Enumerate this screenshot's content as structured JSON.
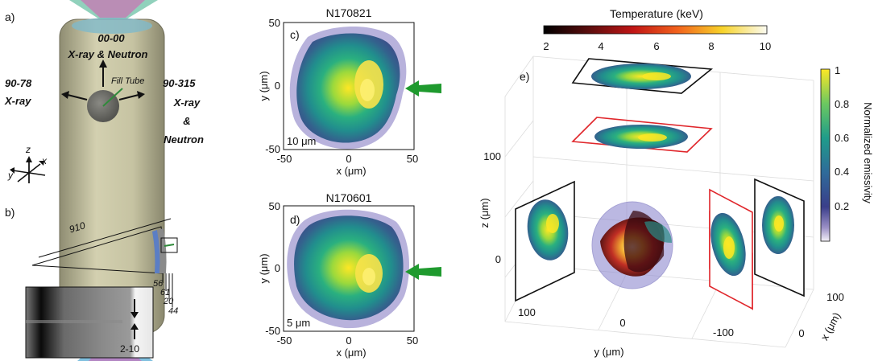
{
  "panel_labels": {
    "a": "a)",
    "b": "b)",
    "c": "c)",
    "d": "d)",
    "e": "e)"
  },
  "panel_a": {
    "views": {
      "top": {
        "id": "00-00",
        "kind": "X-ray & Neutron"
      },
      "left": {
        "id": "90-78",
        "kind": "X-ray"
      },
      "right": {
        "id": "90-315",
        "kind_lines": [
          "X-ray",
          "&",
          "Neutron"
        ]
      }
    },
    "fill_tube_label": "Fill Tube",
    "axes": {
      "z": "z",
      "y": "y",
      "x": "x"
    },
    "colors": {
      "hohlraum": "#c9c6a4",
      "capsule": "#6e6e66"
    }
  },
  "panel_b": {
    "radius_label": "910",
    "layer_labels": [
      "56",
      "61",
      "20",
      "44"
    ],
    "gap_label": "2-10",
    "colors": {
      "ablator": "#5b7ec4",
      "shell": "#8a8a8a"
    }
  },
  "panel_c": {
    "shot": "N170821",
    "scale_text": "10 μm",
    "xlabel": "x (μm)",
    "ylabel": "y (μm)",
    "xticks": [
      "-50",
      "0",
      "50"
    ],
    "yticks": [
      "50",
      "0",
      "-50"
    ],
    "arrow_color": "#1f9a2e"
  },
  "panel_d": {
    "shot": "N170601",
    "scale_text": "5 μm",
    "xlabel": "x (μm)",
    "ylabel": "y (μm)",
    "xticks": [
      "-50",
      "0",
      "50"
    ],
    "yticks": [
      "50",
      "0",
      "-50"
    ],
    "arrow_color": "#1f9a2e"
  },
  "panel_e": {
    "temperature_colorbar": {
      "title": "Temperature (keV)",
      "ticks": [
        "2",
        "4",
        "6",
        "8",
        "10"
      ],
      "range": [
        2,
        10
      ]
    },
    "emissivity_colorbar": {
      "label": "Normalized emissivity",
      "ticks": [
        "1",
        "0.8",
        "0.6",
        "0.4",
        "0.2"
      ],
      "range": [
        0,
        1
      ]
    },
    "z_axis": {
      "label": "z (μm)",
      "ticks": [
        "100",
        "0"
      ]
    },
    "y_axis": {
      "label": "y (μm)",
      "ticks": [
        "100",
        "0",
        "-100"
      ]
    },
    "x_axis": {
      "label": "x (μm)",
      "ticks": [
        "100",
        "0"
      ]
    },
    "frame_colors": {
      "measured": "#111111",
      "reconstructed": "#e0262b"
    }
  }
}
